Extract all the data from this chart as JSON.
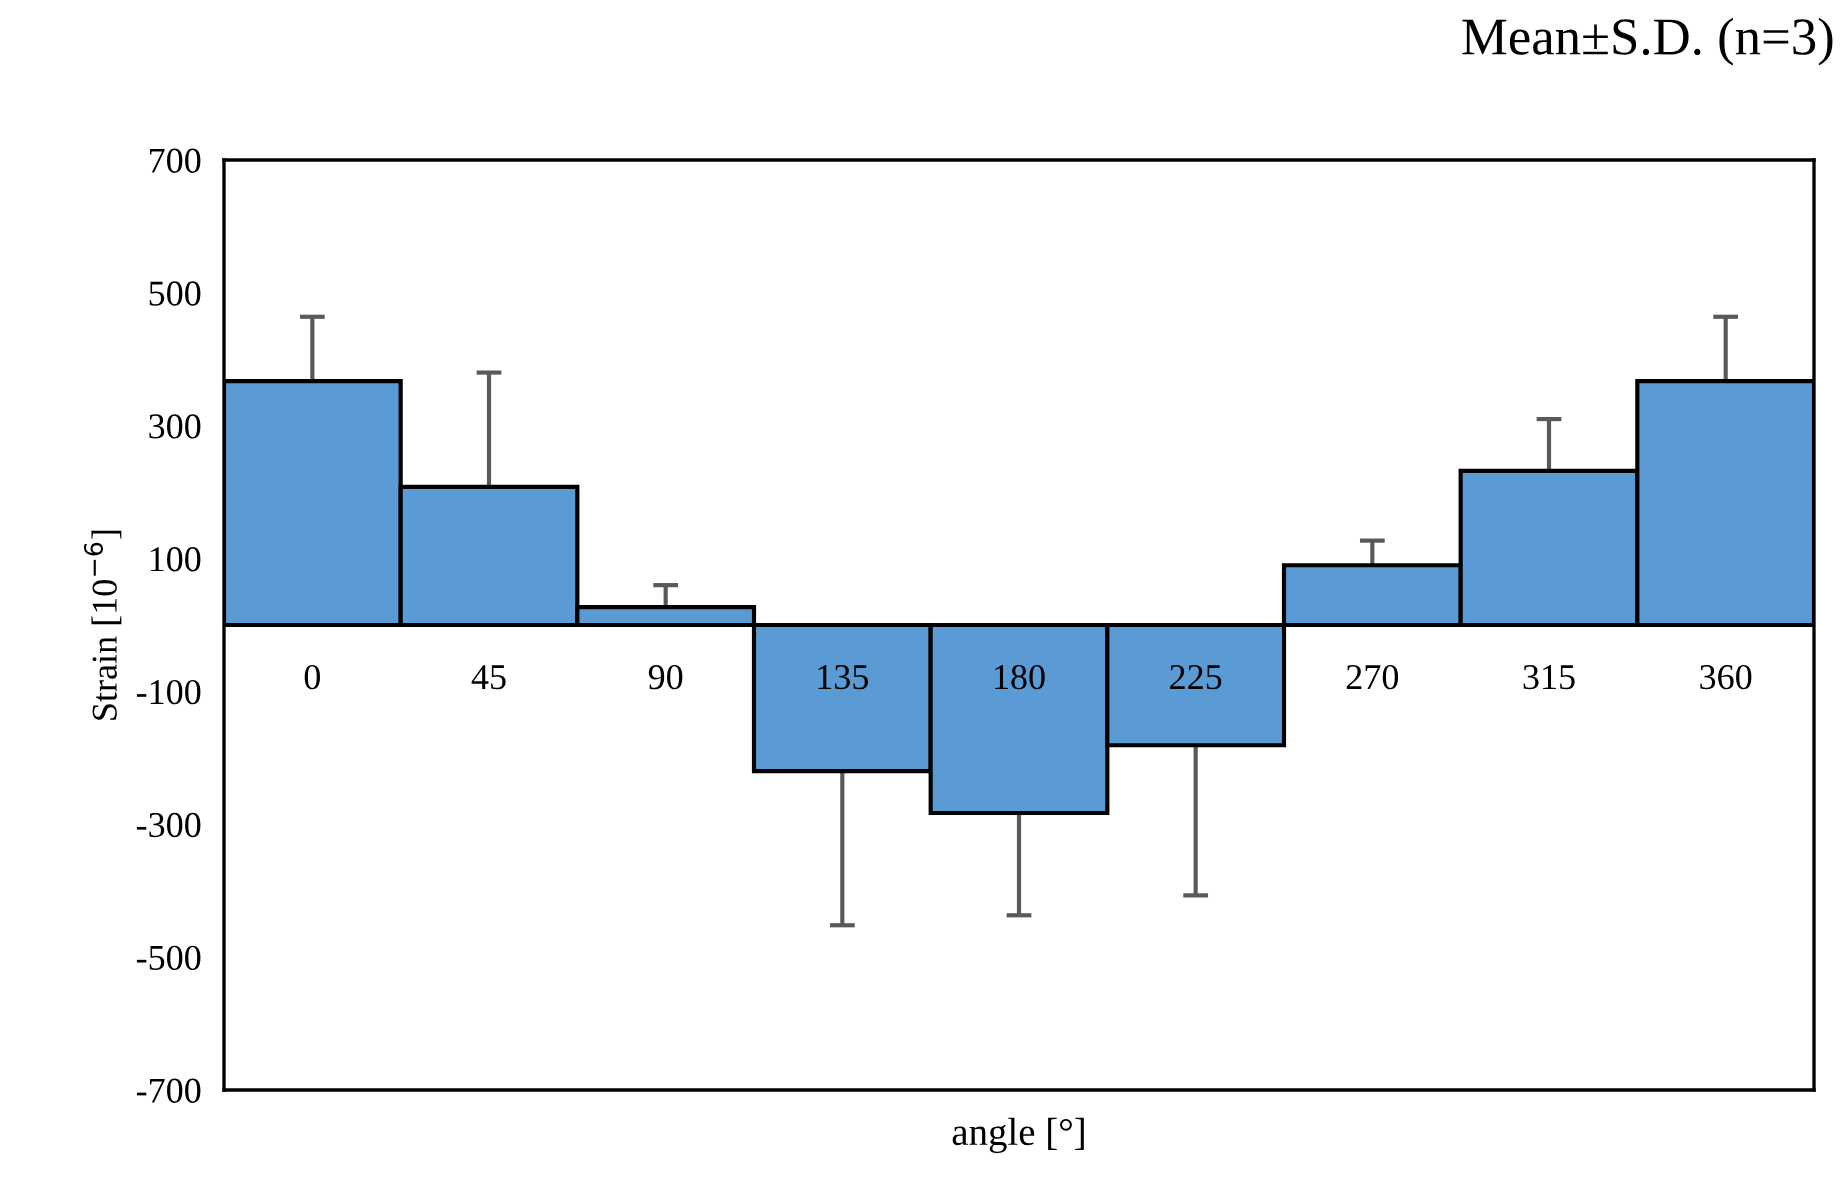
{
  "chart_data": {
    "type": "bar",
    "title": "Mean±S.D. (n=3)",
    "xlabel": "angle [°]",
    "ylabel": "Strain [10$^{−6}$]",
    "categories": [
      "0",
      "45",
      "90",
      "135",
      "180",
      "225",
      "270",
      "315",
      "360"
    ],
    "values": [
      367,
      208,
      27,
      -220,
      -283,
      -181,
      90,
      232,
      367
    ],
    "errors": [
      [
        367,
        464
      ],
      [
        208,
        380
      ],
      [
        27,
        60
      ],
      [
        -452,
        -220
      ],
      [
        -437,
        -283
      ],
      [
        -407,
        -181
      ],
      [
        90,
        127
      ],
      [
        232,
        310
      ],
      [
        367,
        464
      ]
    ],
    "color": "#5b9bd5",
    "ylim": [
      -700,
      700
    ],
    "yticks": [
      -700,
      -500,
      -300,
      -100,
      100,
      300,
      500,
      700
    ],
    "grid": false,
    "legend": false
  }
}
